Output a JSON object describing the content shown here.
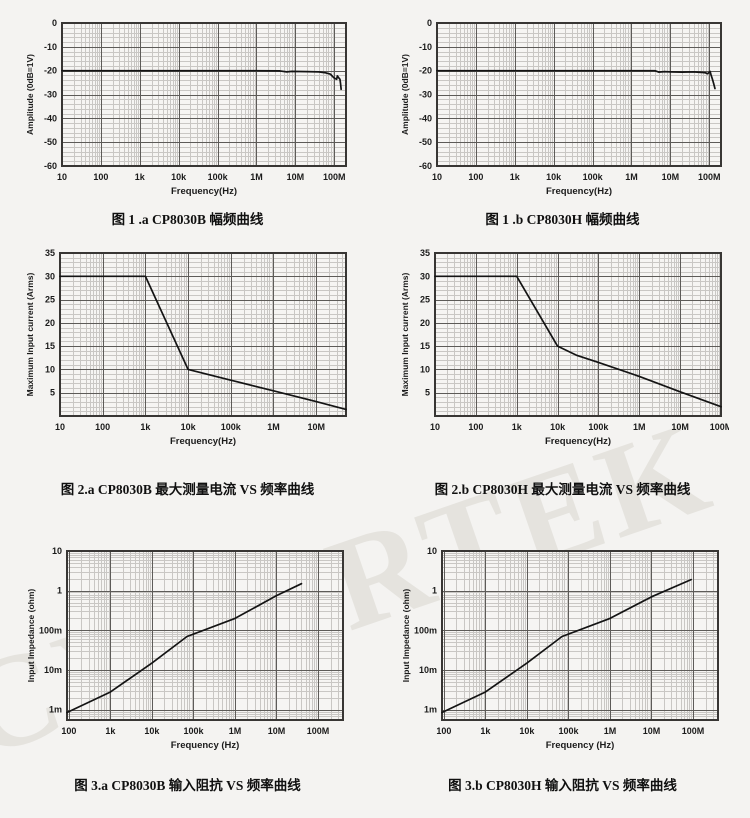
{
  "page": {
    "background": "#f4f3f1",
    "watermark": "CYBERTEK",
    "grid_minor_color": "#c9c7c4",
    "grid_major_color": "#5d5b58",
    "plot_bg_color": "#f6f5f3",
    "frame_color": "#383634",
    "line_color": "#141414"
  },
  "chart_data": [
    {
      "type": "line",
      "caption": "图 1 .a CP8030B 幅频曲线",
      "xlabel": "Frequency(Hz)",
      "ylabel": "Amplitude (0dB=1V)",
      "x": {
        "scale": "log",
        "min": 10,
        "max": 200000000.0,
        "ticks": [
          [
            10,
            "10"
          ],
          [
            100,
            "100"
          ],
          [
            1000,
            "1k"
          ],
          [
            10000.0,
            "10k"
          ],
          [
            100000.0,
            "100k"
          ],
          [
            1000000.0,
            "1M"
          ],
          [
            10000000.0,
            "10M"
          ],
          [
            100000000.0,
            "100M"
          ]
        ]
      },
      "y": {
        "scale": "linear",
        "min": -60,
        "max": 0,
        "minor": 2,
        "major": 10,
        "ticks": [
          [
            0,
            "0"
          ],
          [
            -10,
            "-10"
          ],
          [
            -20,
            "-20"
          ],
          [
            -30,
            "-30"
          ],
          [
            -40,
            "-40"
          ],
          [
            -50,
            "-50"
          ],
          [
            -60,
            "-60"
          ]
        ]
      },
      "series": [
        {
          "name": "amplitude",
          "points": [
            [
              10,
              -20
            ],
            [
              1000000.0,
              -20
            ],
            [
              4000000.0,
              -20.1
            ],
            [
              6000000.0,
              -20.5
            ],
            [
              8000000.0,
              -20.3
            ],
            [
              20000000.0,
              -20.4
            ],
            [
              40000000.0,
              -20.5
            ],
            [
              60000000.0,
              -20.9
            ],
            [
              80000000.0,
              -21.5
            ],
            [
              95000000.0,
              -22.8
            ],
            [
              105000000.0,
              -23.3
            ],
            [
              115000000.0,
              -23.6
            ],
            [
              120000000.0,
              -22.2
            ],
            [
              130000000.0,
              -23.0
            ],
            [
              140000000.0,
              -23.6
            ],
            [
              145000000.0,
              -25.5
            ],
            [
              150000000.0,
              -27.8
            ]
          ]
        }
      ]
    },
    {
      "type": "line",
      "caption": "图 1 .b CP8030H 幅频曲线",
      "xlabel": "Frequency(Hz)",
      "ylabel": "Amplitude (0dB=1V)",
      "x": {
        "scale": "log",
        "min": 10,
        "max": 200000000.0,
        "ticks": [
          [
            10,
            "10"
          ],
          [
            100,
            "100"
          ],
          [
            1000,
            "1k"
          ],
          [
            10000.0,
            "10k"
          ],
          [
            100000.0,
            "100k"
          ],
          [
            1000000.0,
            "1M"
          ],
          [
            10000000.0,
            "10M"
          ],
          [
            100000000.0,
            "100M"
          ]
        ]
      },
      "y": {
        "scale": "linear",
        "min": -60,
        "max": 0,
        "minor": 2,
        "major": 10,
        "ticks": [
          [
            0,
            "0"
          ],
          [
            -10,
            "-10"
          ],
          [
            -20,
            "-20"
          ],
          [
            -30,
            "-30"
          ],
          [
            -40,
            "-40"
          ],
          [
            -50,
            "-50"
          ],
          [
            -60,
            "-60"
          ]
        ]
      },
      "series": [
        {
          "name": "amplitude",
          "points": [
            [
              10,
              -20
            ],
            [
              4000000.0,
              -20
            ],
            [
              5000000.0,
              -20.6
            ],
            [
              7000000.0,
              -20.4
            ],
            [
              10000000.0,
              -20.5
            ],
            [
              20000000.0,
              -20.6
            ],
            [
              40000000.0,
              -20.5
            ],
            [
              60000000.0,
              -20.7
            ],
            [
              80000000.0,
              -20.9
            ],
            [
              90000000.0,
              -21.3
            ],
            [
              100000000.0,
              -20.7
            ],
            [
              105000000.0,
              -20.3
            ],
            [
              110000000.0,
              -21.6
            ],
            [
              120000000.0,
              -23.5
            ],
            [
              130000000.0,
              -25.5
            ],
            [
              140000000.0,
              -27.5
            ]
          ]
        }
      ]
    },
    {
      "type": "line",
      "caption": "图 2.a CP8030B 最大测量电流 VS 频率曲线",
      "xlabel": "Frequency(Hz)",
      "ylabel": "Maximum Input current (Arms)",
      "x": {
        "scale": "log",
        "min": 10,
        "max": 50000000.0,
        "ticks": [
          [
            10,
            "10"
          ],
          [
            100,
            "100"
          ],
          [
            1000,
            "1k"
          ],
          [
            10000.0,
            "10k"
          ],
          [
            100000.0,
            "100k"
          ],
          [
            1000000.0,
            "1M"
          ],
          [
            10000000.0,
            "10M"
          ]
        ]
      },
      "y": {
        "scale": "linear",
        "min": 0,
        "max": 35,
        "minor": 1,
        "major": 5,
        "ticks": [
          [
            5,
            "5"
          ],
          [
            10,
            "10"
          ],
          [
            15,
            "15"
          ],
          [
            20,
            "20"
          ],
          [
            25,
            "25"
          ],
          [
            30,
            "30"
          ],
          [
            35,
            "35"
          ]
        ]
      },
      "series": [
        {
          "name": "max-current",
          "points": [
            [
              10,
              30
            ],
            [
              1000,
              30
            ],
            [
              10000.0,
              10
            ],
            [
              100000.0,
              7.7
            ],
            [
              1000000.0,
              5.4
            ],
            [
              10000000.0,
              3.1
            ],
            [
              50000000.0,
              1.4
            ]
          ]
        }
      ]
    },
    {
      "type": "line",
      "caption": "图 2.b CP8030H 最大测量电流 VS 频率曲线",
      "xlabel": "Frequency(Hz)",
      "ylabel": "Maximum Input current (Arms)",
      "x": {
        "scale": "log",
        "min": 10,
        "max": 100000000.0,
        "ticks": [
          [
            10,
            "10"
          ],
          [
            100,
            "100"
          ],
          [
            1000,
            "1k"
          ],
          [
            10000.0,
            "10k"
          ],
          [
            100000.0,
            "100k"
          ],
          [
            1000000.0,
            "1M"
          ],
          [
            10000000.0,
            "10M"
          ],
          [
            100000000.0,
            "100M"
          ]
        ]
      },
      "y": {
        "scale": "linear",
        "min": 0,
        "max": 35,
        "minor": 1,
        "major": 5,
        "ticks": [
          [
            5,
            "5"
          ],
          [
            10,
            "10"
          ],
          [
            15,
            "15"
          ],
          [
            20,
            "20"
          ],
          [
            25,
            "25"
          ],
          [
            30,
            "30"
          ],
          [
            35,
            "35"
          ]
        ]
      },
      "series": [
        {
          "name": "max-current",
          "points": [
            [
              10,
              30
            ],
            [
              1000,
              30
            ],
            [
              10000.0,
              15
            ],
            [
              30000.0,
              13
            ],
            [
              100000.0,
              11.5
            ],
            [
              1000000.0,
              8.5
            ],
            [
              10000000.0,
              5.2
            ],
            [
              100000000.0,
              2
            ]
          ]
        }
      ]
    },
    {
      "type": "line",
      "caption": "图 3.a CP8030B 输入阻抗 VS 频率曲线",
      "xlabel": "Frequency (Hz)",
      "ylabel": "Input Impedance (ohm)",
      "x": {
        "scale": "log",
        "min": 90,
        "max": 400000000.0,
        "ticks": [
          [
            100,
            "100"
          ],
          [
            1000,
            "1k"
          ],
          [
            10000.0,
            "10k"
          ],
          [
            100000.0,
            "100k"
          ],
          [
            1000000.0,
            "1M"
          ],
          [
            10000000.0,
            "10M"
          ],
          [
            100000000.0,
            "100M"
          ]
        ]
      },
      "y": {
        "scale": "log",
        "min": 0.00055,
        "max": 10,
        "ticks": [
          [
            10,
            "10"
          ],
          [
            1,
            "1"
          ],
          [
            0.1,
            "100m"
          ],
          [
            0.01,
            "10m"
          ],
          [
            0.001,
            "1m"
          ]
        ]
      },
      "series": [
        {
          "name": "input-impedance",
          "points": [
            [
              90,
              0.00085
            ],
            [
              1000.0,
              0.0028
            ],
            [
              10000.0,
              0.015
            ],
            [
              70000.0,
              0.07
            ],
            [
              1000000.0,
              0.2
            ],
            [
              10000000.0,
              0.75
            ],
            [
              40000000.0,
              1.5
            ]
          ]
        }
      ]
    },
    {
      "type": "line",
      "caption": "图 3.b CP8030H 输入阻抗 VS 频率曲线",
      "xlabel": "Frequency (Hz)",
      "ylabel": "Input Impedance (ohm)",
      "x": {
        "scale": "log",
        "min": 90,
        "max": 400000000.0,
        "ticks": [
          [
            100,
            "100"
          ],
          [
            1000,
            "1k"
          ],
          [
            10000.0,
            "10k"
          ],
          [
            100000.0,
            "100k"
          ],
          [
            1000000.0,
            "1M"
          ],
          [
            10000000.0,
            "10M"
          ],
          [
            100000000.0,
            "100M"
          ]
        ]
      },
      "y": {
        "scale": "log",
        "min": 0.00055,
        "max": 10,
        "ticks": [
          [
            10,
            "10"
          ],
          [
            1,
            "1"
          ],
          [
            0.1,
            "100m"
          ],
          [
            0.01,
            "10m"
          ],
          [
            0.001,
            "1m"
          ]
        ]
      },
      "series": [
        {
          "name": "input-impedance",
          "points": [
            [
              90,
              0.00085
            ],
            [
              1000.0,
              0.0028
            ],
            [
              10000.0,
              0.015
            ],
            [
              70000.0,
              0.07
            ],
            [
              1000000.0,
              0.2
            ],
            [
              10000000.0,
              0.7
            ],
            [
              90000000.0,
              1.9
            ]
          ]
        }
      ]
    }
  ]
}
